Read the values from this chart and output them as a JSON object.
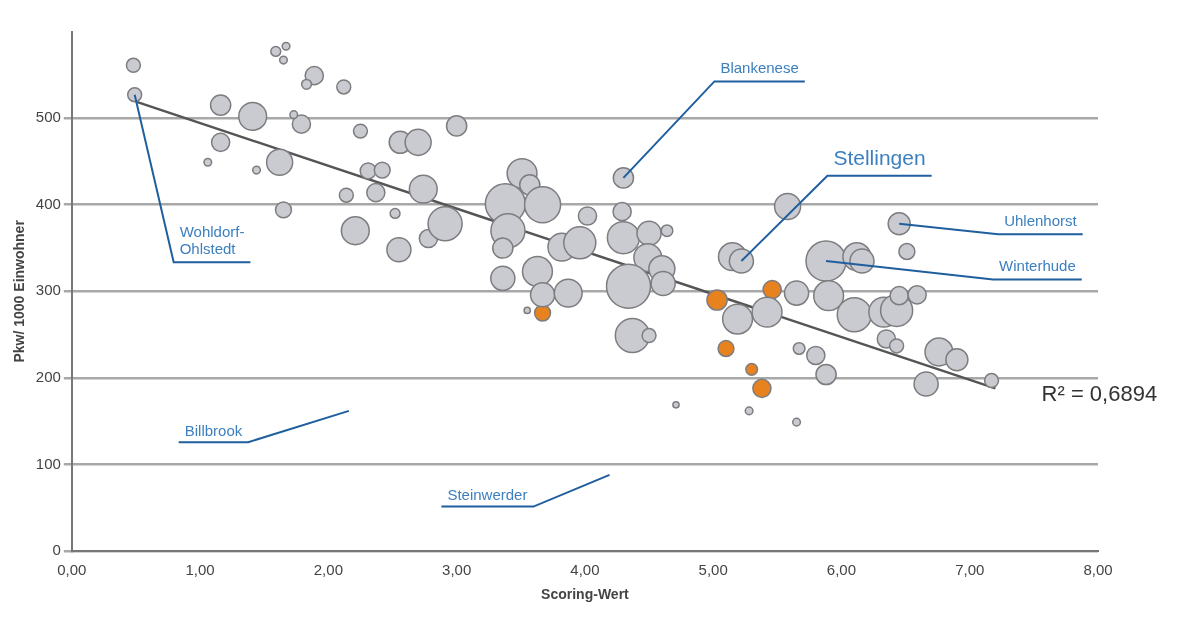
{
  "chart_data": {
    "type": "bubble",
    "xlabel": "Scoring-Wert",
    "ylabel": "Pkw/ 1000 Einwohner",
    "xlim": [
      0,
      8
    ],
    "ylim": [
      0,
      600
    ],
    "xticks": [
      {
        "value": 0,
        "label": "0,00"
      },
      {
        "value": 1,
        "label": "1,00"
      },
      {
        "value": 2,
        "label": "2,00"
      },
      {
        "value": 3,
        "label": "3,00"
      },
      {
        "value": 4,
        "label": "4,00"
      },
      {
        "value": 5,
        "label": "5,00"
      },
      {
        "value": 6,
        "label": "6,00"
      },
      {
        "value": 7,
        "label": "7,00"
      },
      {
        "value": 8,
        "label": "8,00"
      }
    ],
    "yticks": [
      0,
      100,
      200,
      300,
      400,
      500
    ],
    "grid": "y",
    "legend": false,
    "series": [
      {
        "color": "#c9cbd1",
        "x": [
          0.48,
          0.49,
          1.16,
          1.41,
          1.16,
          1.06,
          1.62,
          1.44,
          1.65,
          1.59,
          1.67,
          1.65,
          1.89,
          1.83,
          2.12,
          1.79,
          1.73,
          2.25,
          2.56,
          2.7,
          3.0,
          2.31,
          2.42,
          2.14,
          2.37,
          2.74,
          2.52,
          2.21,
          2.55,
          2.78,
          2.91,
          3.51,
          3.57,
          3.38,
          3.67,
          4.02,
          3.4,
          3.36,
          3.82,
          3.96,
          4.29,
          4.3,
          4.3,
          4.5,
          4.64,
          4.49,
          4.6,
          4.61,
          4.34,
          3.36,
          3.63,
          3.67,
          3.87,
          3.55,
          4.37,
          4.5,
          4.71,
          5.15,
          5.22,
          5.58,
          5.65,
          5.19,
          5.42,
          5.67,
          5.28,
          5.65,
          6.45,
          6.51,
          5.88,
          6.12,
          6.16,
          5.9,
          6.1,
          6.33,
          6.43,
          6.45,
          6.59,
          6.35,
          6.43,
          5.8,
          5.88,
          6.76,
          6.9,
          6.66,
          7.17
        ],
        "values": [
          561,
          527,
          515,
          502,
          472,
          449,
          449,
          440,
          394,
          577,
          583,
          567,
          549,
          539,
          536,
          493,
          504,
          485,
          472,
          472,
          491,
          439,
          440,
          411,
          414,
          418,
          390,
          370,
          348,
          361,
          378,
          436,
          423,
          401,
          400,
          387,
          370,
          350,
          351,
          356,
          392,
          431,
          362,
          367,
          370,
          339,
          326,
          309,
          306,
          315,
          323,
          296,
          298,
          278,
          249,
          249,
          169,
          340,
          335,
          398,
          298,
          268,
          276,
          234,
          162,
          149,
          378,
          346,
          335,
          340,
          335,
          295,
          273,
          276,
          278,
          295,
          296,
          245,
          237,
          226,
          204,
          230,
          221,
          193,
          197
        ],
        "sizes": [
          0.1,
          0.1,
          0.21,
          0.4,
          0.17,
          0.03,
          0.35,
          0.03,
          0.13,
          0.05,
          0.03,
          0.03,
          0.17,
          0.05,
          0.1,
          0.17,
          0.03,
          0.1,
          0.25,
          0.35,
          0.21,
          0.13,
          0.13,
          0.1,
          0.17,
          0.4,
          0.05,
          0.4,
          0.3,
          0.17,
          0.6,
          0.46,
          0.21,
          0.83,
          0.67,
          0.17,
          0.6,
          0.21,
          0.4,
          0.53,
          0.17,
          0.21,
          0.53,
          0.3,
          0.07,
          0.4,
          0.35,
          0.3,
          1,
          0.3,
          0.46,
          0.3,
          0.4,
          0.02,
          0.6,
          0.1,
          0.02,
          0.4,
          0.3,
          0.35,
          0.3,
          0.46,
          0.46,
          0.07,
          0.03,
          0.03,
          0.25,
          0.13,
          0.83,
          0.4,
          0.3,
          0.46,
          0.6,
          0.46,
          0.53,
          0.17,
          0.17,
          0.17,
          0.1,
          0.17,
          0.21,
          0.4,
          0.25,
          0.3,
          0.1
        ]
      },
      {
        "color": "#e8821e",
        "x": [
          3.67,
          5.03,
          5.46,
          5.1,
          5.3,
          5.38
        ],
        "values": [
          275,
          290,
          302,
          234,
          210,
          188
        ],
        "sizes": [
          0.13,
          0.21,
          0.17,
          0.13,
          0.07,
          0.17
        ]
      },
      {
        "type": "line",
        "color": "#555555",
        "x": [
          0.5,
          7.2
        ],
        "values": [
          519,
          188
        ]
      }
    ],
    "annotations": [
      {
        "text": "Wohldorf-\nOhlstedt",
        "x": 0.49,
        "y": 527
      },
      {
        "text": "Blankenese",
        "x": 4.3,
        "y": 431
      },
      {
        "text": "Stellingen",
        "x": 5.22,
        "y": 335
      },
      {
        "text": "Uhlenhorst",
        "x": 6.45,
        "y": 378
      },
      {
        "text": "Winterhude",
        "x": 5.88,
        "y": 335
      },
      "Billbrook",
      "Steinwerder",
      "R² = 0,6894"
    ]
  }
}
